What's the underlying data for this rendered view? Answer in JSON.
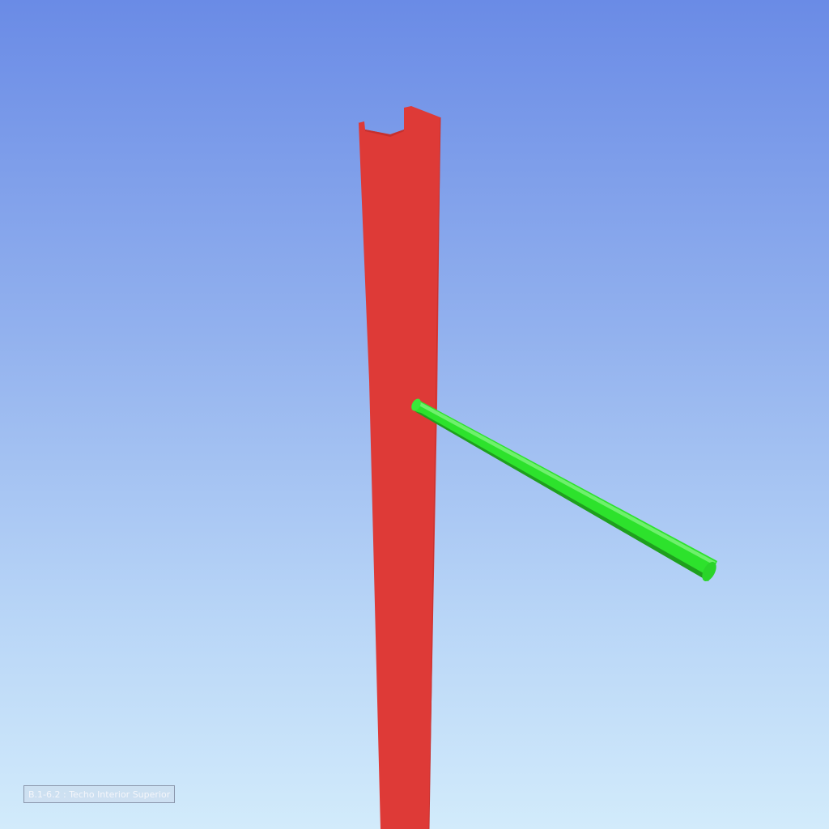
{
  "viewer": {
    "background_top": "#6a8be6",
    "background_bottom": "#d2ebfb",
    "objects": [
      {
        "name": "red-structural-column",
        "color": "#de3a37"
      },
      {
        "name": "green-cylindrical-bar",
        "color": "#2de22c"
      }
    ],
    "selection_label": "B.1-6.2 : Techo Interior Superior"
  }
}
